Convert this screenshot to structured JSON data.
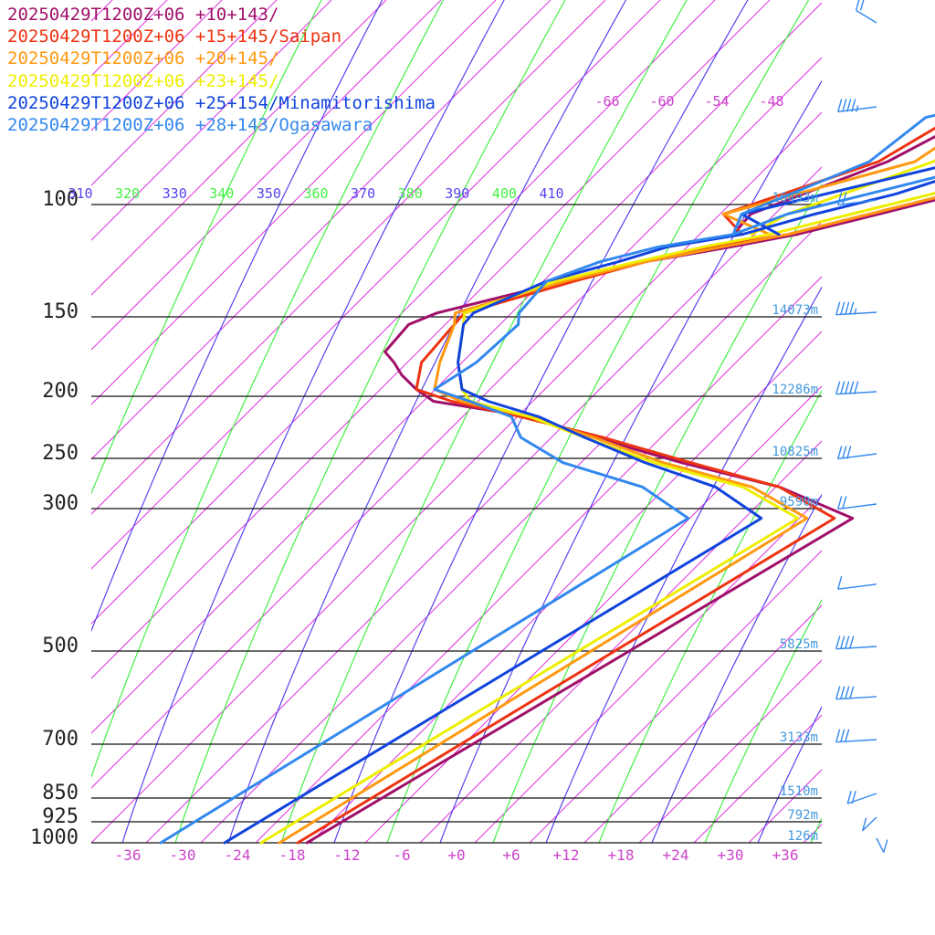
{
  "chart_data": {
    "type": "line",
    "title": "",
    "legend": [
      {
        "label": "20250429T1200Z+06 +10+143/",
        "color": "#a0106a"
      },
      {
        "label": "20250429T1200Z+06 +15+145/Saipan",
        "color": "#ee3311"
      },
      {
        "label": "20250429T1200Z+06 +20+145/",
        "color": "#ff9911"
      },
      {
        "label": "20250429T1200Z+06 +23+145/",
        "color": "#eeee00"
      },
      {
        "label": "20250429T1200Z+06 +25+154/Minamitorishima",
        "color": "#1144dd"
      },
      {
        "label": "20250429T1200Z+06 +28+143/Ogasawara",
        "color": "#3388ee"
      }
    ],
    "legend_placement": "top-left",
    "x_ticks": [
      "-36",
      "-30",
      "-24",
      "-18",
      "-12",
      "-6",
      "+0",
      "+6",
      "+12",
      "+18",
      "+24",
      "+30",
      "+36"
    ],
    "pressure_levels": [
      "100",
      "150",
      "200",
      "250",
      "300",
      "500",
      "700",
      "850",
      "925",
      "1000"
    ],
    "heights": [
      {
        "p": 100,
        "label": "16493m"
      },
      {
        "p": 150,
        "label": "14073m"
      },
      {
        "p": 200,
        "label": "12286m"
      },
      {
        "p": 250,
        "label": "10825m"
      },
      {
        "p": 300,
        "label": "9590m"
      },
      {
        "p": 500,
        "label": "5825m"
      },
      {
        "p": 700,
        "label": "3133m"
      },
      {
        "p": 850,
        "label": "1510m"
      },
      {
        "p": 925,
        "label": "792m"
      },
      {
        "p": 1000,
        "label": "126m"
      }
    ],
    "theta_labels": [
      "310",
      "320",
      "330",
      "340",
      "350",
      "360",
      "370",
      "380",
      "390",
      "400",
      "410"
    ],
    "upper_temp_labels": [
      "-66",
      "-60",
      "-54",
      "-48"
    ],
    "series": [
      {
        "name": "20250429T1200Z+06 +10+143/",
        "temperature": [
          [
            0,
            -17
          ],
          [
            735,
            12
          ],
          [
            806,
            1
          ],
          [
            861,
            -12
          ],
          [
            918,
            -24
          ],
          [
            965,
            -33
          ],
          [
            1000,
            -45
          ],
          [
            1027,
            -48
          ],
          [
            1060,
            -51
          ],
          [
            1088,
            -53
          ],
          [
            1112,
            -55
          ],
          [
            1174,
            -55
          ],
          [
            1200,
            -53
          ],
          [
            1272,
            -42
          ],
          [
            1316,
            -35
          ],
          [
            1350,
            -27
          ],
          [
            1378,
            -21
          ],
          [
            1424,
            -14
          ],
          [
            1470,
            -7
          ],
          [
            1516,
            -5
          ],
          [
            1565,
            3
          ],
          [
            1643,
            11
          ],
          [
            1667,
            14
          ],
          [
            1726,
            17
          ],
          [
            1768,
            20
          ],
          [
            1778,
            21
          ],
          [
            1795,
            22
          ],
          [
            1810,
            24
          ],
          [
            1838,
            25
          ],
          [
            1862,
            25
          ],
          [
            1865,
            27
          ],
          [
            1885,
            27
          ],
          [
            1909,
            24
          ]
        ],
        "dewpoint": [
          [
            1378,
            -28
          ],
          [
            1424,
            -28
          ],
          [
            1543,
            -18
          ],
          [
            1643,
            -13
          ],
          [
            1667,
            -9
          ],
          [
            1726,
            1
          ],
          [
            1778,
            8
          ],
          [
            1810,
            9
          ],
          [
            1838,
            12
          ],
          [
            1862,
            15
          ],
          [
            1885,
            18
          ],
          [
            1909,
            22
          ]
        ]
      },
      {
        "name": "20250429T1200Z+06 +15+145/Saipan",
        "temperature": [
          [
            0,
            -18
          ],
          [
            735,
            10
          ],
          [
            806,
            1
          ],
          [
            861,
            -11
          ],
          [
            918,
            -23
          ],
          [
            965,
            -34
          ],
          [
            1000,
            -43
          ],
          [
            1027,
            -48
          ],
          [
            1088,
            -50
          ],
          [
            1174,
            -50
          ],
          [
            1200,
            -50
          ],
          [
            1272,
            -41
          ],
          [
            1316,
            -35
          ],
          [
            1350,
            -29
          ],
          [
            1378,
            -22
          ],
          [
            1424,
            -15
          ],
          [
            1470,
            -8
          ],
          [
            1516,
            -4
          ],
          [
            1565,
            3
          ],
          [
            1643,
            10
          ],
          [
            1667,
            14
          ],
          [
            1726,
            18
          ],
          [
            1768,
            20
          ],
          [
            1778,
            20
          ],
          [
            1810,
            23
          ],
          [
            1838,
            25
          ],
          [
            1862,
            25
          ],
          [
            1885,
            25
          ],
          [
            1909,
            26
          ]
        ],
        "dewpoint": [
          [
            1378,
            -27
          ],
          [
            1424,
            -31
          ],
          [
            1543,
            -19
          ],
          [
            1643,
            -15
          ],
          [
            1667,
            -10
          ],
          [
            1726,
            1
          ],
          [
            1778,
            7
          ],
          [
            1810,
            11
          ],
          [
            1838,
            15
          ],
          [
            1862,
            17
          ],
          [
            1885,
            22
          ],
          [
            1909,
            23
          ]
        ]
      },
      {
        "name": "20250429T1200Z+06 +20+145/",
        "temperature": [
          [
            0,
            -20
          ],
          [
            735,
            7
          ],
          [
            806,
            -2
          ],
          [
            861,
            -14
          ],
          [
            918,
            -24
          ],
          [
            965,
            -33
          ],
          [
            1000,
            -42
          ],
          [
            1027,
            -46
          ],
          [
            1088,
            -48
          ],
          [
            1174,
            -50
          ],
          [
            1200,
            -51
          ],
          [
            1272,
            -42
          ],
          [
            1316,
            -35
          ],
          [
            1350,
            -28
          ],
          [
            1378,
            -22
          ],
          [
            1424,
            -15
          ],
          [
            1470,
            -8
          ],
          [
            1516,
            -5
          ],
          [
            1565,
            3
          ],
          [
            1643,
            10
          ],
          [
            1667,
            13
          ],
          [
            1726,
            16
          ],
          [
            1768,
            18
          ],
          [
            1778,
            19
          ],
          [
            1810,
            21
          ],
          [
            1838,
            22
          ],
          [
            1862,
            23
          ],
          [
            1885,
            24
          ],
          [
            1909,
            24
          ]
        ],
        "dewpoint": [
          [
            1378,
            -24
          ],
          [
            1424,
            -31
          ],
          [
            1543,
            -15
          ],
          [
            1643,
            -12
          ],
          [
            1667,
            -8
          ],
          [
            1726,
            1
          ],
          [
            1778,
            9
          ],
          [
            1810,
            11
          ],
          [
            1838,
            14
          ],
          [
            1862,
            17
          ],
          [
            1885,
            21
          ],
          [
            1909,
            23
          ]
        ]
      },
      {
        "name": "20250429T1200Z+06 +23+145/",
        "temperature": [
          [
            0,
            -22
          ],
          [
            735,
            6
          ],
          [
            806,
            -3
          ],
          [
            861,
            -15
          ],
          [
            918,
            -25
          ],
          [
            965,
            -33
          ],
          [
            1000,
            -41
          ],
          [
            1027,
            -43
          ],
          [
            1088,
            -46
          ],
          [
            1174,
            -49
          ],
          [
            1200,
            -50
          ],
          [
            1272,
            -43
          ],
          [
            1316,
            -36
          ],
          [
            1350,
            -30
          ],
          [
            1378,
            -24
          ],
          [
            1424,
            -17
          ],
          [
            1470,
            -10
          ],
          [
            1516,
            -6
          ],
          [
            1565,
            2
          ],
          [
            1643,
            8
          ],
          [
            1667,
            11
          ],
          [
            1726,
            14
          ],
          [
            1768,
            17
          ],
          [
            1778,
            18
          ],
          [
            1810,
            21
          ],
          [
            1838,
            22
          ],
          [
            1862,
            23
          ],
          [
            1885,
            25
          ],
          [
            1909,
            24
          ]
        ],
        "dewpoint": [
          [
            1378,
            -26
          ],
          [
            1424,
            -24
          ],
          [
            1543,
            -13
          ],
          [
            1643,
            -9
          ],
          [
            1667,
            -8
          ],
          [
            1726,
            3
          ],
          [
            1778,
            8
          ],
          [
            1810,
            10
          ],
          [
            1838,
            15
          ],
          [
            1862,
            16
          ],
          [
            1885,
            21
          ],
          [
            1909,
            23
          ]
        ]
      },
      {
        "name": "20250429T1200Z+06 +25+154/Minamitorishima",
        "temperature": [
          [
            0,
            -26
          ],
          [
            735,
            2
          ],
          [
            806,
            -6
          ],
          [
            861,
            -16
          ],
          [
            918,
            -25
          ],
          [
            965,
            -32
          ],
          [
            1000,
            -39
          ],
          [
            1027,
            -43
          ],
          [
            1088,
            -46
          ],
          [
            1174,
            -49
          ],
          [
            1200,
            -49
          ],
          [
            1272,
            -44
          ],
          [
            1316,
            -38
          ],
          [
            1350,
            -34
          ],
          [
            1378,
            -27
          ],
          [
            1424,
            -21
          ],
          [
            1470,
            -14
          ],
          [
            1516,
            -9
          ],
          [
            1565,
            -2
          ],
          [
            1643,
            6
          ],
          [
            1667,
            9
          ],
          [
            1726,
            12
          ],
          [
            1768,
            16
          ],
          [
            1778,
            17
          ],
          [
            1810,
            18
          ],
          [
            1838,
            18
          ],
          [
            1862,
            20
          ],
          [
            1885,
            21
          ],
          [
            1909,
            22
          ]
        ],
        "dewpoint": [
          [
            1378,
            -23
          ],
          [
            1424,
            -29
          ],
          [
            1543,
            -10
          ],
          [
            1643,
            -13
          ],
          [
            1667,
            -16
          ],
          [
            1726,
            2
          ],
          [
            1778,
            9
          ],
          [
            1810,
            9
          ],
          [
            1838,
            15
          ],
          [
            1862,
            15
          ],
          [
            1885,
            18
          ],
          [
            1909,
            20
          ]
        ]
      },
      {
        "name": "20250429T1200Z+06 +28+143/Ogasawara",
        "temperature": [
          [
            0,
            -33
          ],
          [
            735,
            -6
          ],
          [
            806,
            -14
          ],
          [
            861,
            -25
          ],
          [
            918,
            -32
          ],
          [
            965,
            -35
          ],
          [
            1000,
            -41
          ],
          [
            1027,
            -46
          ],
          [
            1088,
            -44
          ],
          [
            1174,
            -43
          ],
          [
            1200,
            -44
          ],
          [
            1272,
            -44
          ],
          [
            1316,
            -40
          ],
          [
            1350,
            -35
          ],
          [
            1378,
            -28
          ],
          [
            1424,
            -24
          ],
          [
            1470,
            -17
          ],
          [
            1516,
            -10
          ],
          [
            1565,
            -4
          ],
          [
            1643,
            3
          ],
          [
            1667,
            8
          ],
          [
            1726,
            11
          ],
          [
            1768,
            15
          ],
          [
            1778,
            16
          ],
          [
            1810,
            18
          ],
          [
            1838,
            20
          ],
          [
            1862,
            20
          ],
          [
            1885,
            21
          ],
          [
            1909,
            21
          ]
        ],
        "dewpoint": [
          [
            1378,
            -28
          ],
          [
            1424,
            -29
          ],
          [
            1543,
            -20
          ],
          [
            1643,
            -18
          ],
          [
            1667,
            -14
          ],
          [
            1726,
            3
          ],
          [
            1778,
            8
          ],
          [
            1810,
            7
          ],
          [
            1838,
            9
          ],
          [
            1862,
            8
          ],
          [
            1885,
            6
          ],
          [
            1909,
            7
          ]
        ]
      }
    ],
    "wind_barbs": [
      {
        "p": 60,
        "dir": 330,
        "kt": 20
      },
      {
        "p": 80,
        "dir": 250,
        "kt": 45
      },
      {
        "p": 100,
        "dir": 250,
        "kt": 20
      },
      {
        "p": 150,
        "dir": 260,
        "kt": 45
      },
      {
        "p": 200,
        "dir": 260,
        "kt": 50
      },
      {
        "p": 250,
        "dir": 250,
        "kt": 30
      },
      {
        "p": 300,
        "dir": 250,
        "kt": 20
      },
      {
        "p": 400,
        "dir": 250,
        "kt": 10
      },
      {
        "p": 500,
        "dir": 260,
        "kt": 40
      },
      {
        "p": 600,
        "dir": 260,
        "kt": 40
      },
      {
        "p": 700,
        "dir": 260,
        "kt": 30
      },
      {
        "p": 850,
        "dir": 225,
        "kt": 20
      },
      {
        "p": 925,
        "dir": 200,
        "kt": 10
      },
      {
        "p": 1000,
        "dir": 170,
        "kt": 10
      }
    ]
  }
}
